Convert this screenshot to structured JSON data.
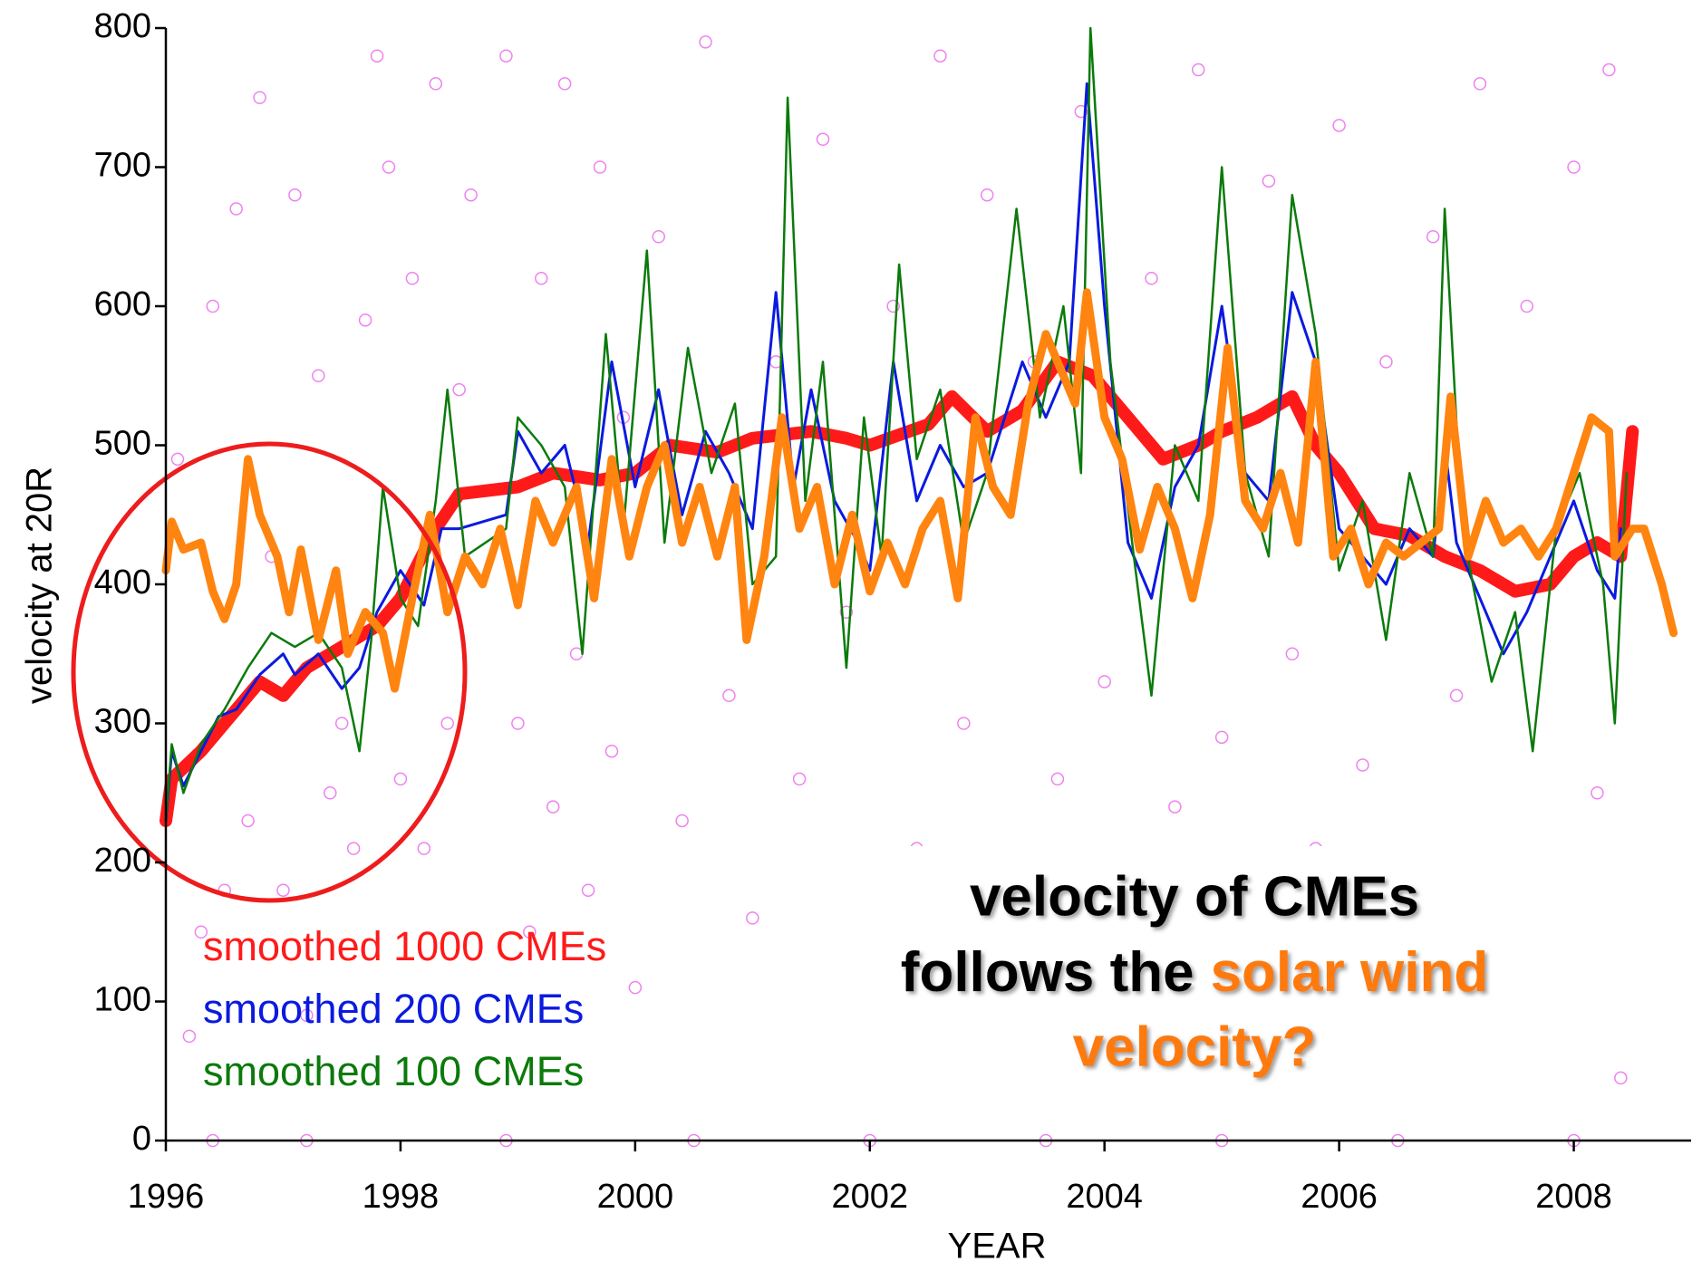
{
  "chart_data": {
    "type": "line",
    "xlabel": "YEAR",
    "ylabel": "velocity at 20R",
    "xlim": [
      1996,
      2009
    ],
    "ylim": [
      0,
      800
    ],
    "xticks": [
      1996,
      1998,
      2000,
      2002,
      2004,
      2006,
      2008
    ],
    "yticks": [
      0,
      100,
      200,
      300,
      400,
      500,
      600,
      700,
      800
    ],
    "annotation": {
      "line1": "velocity of CMEs",
      "line2a": "follows the",
      "line2b": "solar wind",
      "line3": "velocity?",
      "color": "#ff7a10"
    },
    "series": [
      {
        "type": "scatter",
        "color": "#ee82ee",
        "x": [
          1996.1,
          1996.2,
          1996.3,
          1996.4,
          1996.5,
          1996.6,
          1996.7,
          1996.8,
          1996.9,
          1997.0,
          1997.1,
          1997.2,
          1997.3,
          1997.4,
          1997.5,
          1997.6,
          1997.7,
          1997.8,
          1997.9,
          1998.0,
          1998.1,
          1998.2,
          1998.3,
          1998.4,
          1998.5,
          1998.6,
          1998.9,
          1999.0,
          1999.1,
          1999.2,
          1999.3,
          1999.4,
          1999.5,
          1999.6,
          1999.7,
          1999.8,
          1999.9,
          2000.0,
          2000.2,
          2000.4,
          2000.6,
          2000.8,
          2001.0,
          2001.2,
          2001.4,
          2001.6,
          2001.8,
          2002.0,
          2002.2,
          2002.4,
          2002.6,
          2002.8,
          2003.0,
          2003.2,
          2003.4,
          2003.6,
          2003.8,
          2004.0,
          2004.2,
          2004.4,
          2004.6,
          2004.8,
          2005.0,
          2005.2,
          2005.4,
          2005.6,
          2005.8,
          2006.0,
          2006.2,
          2006.4,
          2006.6,
          2006.8,
          2007.0,
          2007.2,
          2007.4,
          2007.6,
          2007.8,
          2008.0,
          2008.2,
          2008.4,
          2008.3,
          1996.4,
          1997.2,
          1998.9,
          2000.5,
          2002.0,
          2003.5,
          2005.0,
          2006.5,
          2008.0
        ],
        "values": [
          490,
          75,
          150,
          600,
          180,
          670,
          230,
          750,
          420,
          180,
          680,
          90,
          550,
          250,
          300,
          210,
          590,
          780,
          700,
          260,
          620,
          210,
          760,
          300,
          540,
          680,
          780,
          300,
          150,
          620,
          240,
          760,
          350,
          180,
          700,
          280,
          520,
          110,
          650,
          230,
          790,
          320,
          160,
          560,
          260,
          720,
          380,
          130,
          600,
          210,
          780,
          300,
          680,
          170,
          560,
          260,
          740,
          330,
          60,
          620,
          240,
          770,
          290,
          150,
          690,
          350,
          210,
          730,
          270,
          560,
          120,
          650,
          320,
          760,
          200,
          600,
          90,
          700,
          250,
          45,
          770,
          0,
          0,
          0,
          0,
          0,
          0,
          0,
          0,
          0
        ]
      },
      {
        "name": "smoothed 1000 CMEs",
        "color": "#ff1a1a",
        "x": [
          1996.0,
          1996.05,
          1996.3,
          1996.5,
          1996.8,
          1997.0,
          1997.2,
          1997.5,
          1997.8,
          1998.0,
          1998.3,
          1998.5,
          1999.0,
          1999.3,
          1999.7,
          2000.0,
          2000.3,
          2000.7,
          2001.0,
          2001.5,
          2001.8,
          2002.0,
          2002.5,
          2002.7,
          2003.0,
          2003.3,
          2003.6,
          2003.9,
          2004.2,
          2004.5,
          2004.8,
          2005.0,
          2005.3,
          2005.6,
          2005.8,
          2006.0,
          2006.3,
          2006.6,
          2006.9,
          2007.2,
          2007.5,
          2007.8,
          2008.0,
          2008.2,
          2008.4,
          2008.5
        ],
        "values": [
          230,
          260,
          280,
          300,
          330,
          320,
          340,
          355,
          370,
          390,
          440,
          465,
          470,
          480,
          475,
          480,
          500,
          495,
          505,
          510,
          505,
          500,
          515,
          535,
          510,
          525,
          560,
          550,
          520,
          490,
          500,
          510,
          520,
          535,
          500,
          480,
          440,
          435,
          420,
          410,
          395,
          400,
          420,
          430,
          420,
          510
        ]
      },
      {
        "name": "smoothed 200 CMEs",
        "color": "#0a1adf",
        "x": [
          1996.0,
          1996.05,
          1996.15,
          1996.3,
          1996.45,
          1996.6,
          1996.8,
          1997.0,
          1997.1,
          1997.3,
          1997.5,
          1997.65,
          1997.8,
          1998.0,
          1998.2,
          1998.35,
          1998.5,
          1998.9,
          1999.0,
          1999.2,
          1999.4,
          1999.6,
          1999.8,
          2000.0,
          2000.2,
          2000.4,
          2000.6,
          2000.8,
          2001.0,
          2001.2,
          2001.35,
          2001.5,
          2001.7,
          2001.9,
          2002.0,
          2002.2,
          2002.4,
          2002.6,
          2002.8,
          2003.0,
          2003.3,
          2003.5,
          2003.7,
          2003.85,
          2004.0,
          2004.2,
          2004.4,
          2004.6,
          2004.8,
          2005.0,
          2005.2,
          2005.4,
          2005.6,
          2005.8,
          2006.0,
          2006.2,
          2006.4,
          2006.6,
          2006.8,
          2006.9,
          2007.0,
          2007.2,
          2007.4,
          2007.6,
          2007.8,
          2008.0,
          2008.2,
          2008.35,
          2008.4
        ],
        "values": [
          230,
          280,
          255,
          280,
          305,
          310,
          335,
          350,
          335,
          350,
          325,
          340,
          380,
          410,
          385,
          440,
          440,
          450,
          510,
          480,
          500,
          430,
          560,
          470,
          540,
          450,
          510,
          480,
          440,
          610,
          470,
          540,
          460,
          430,
          410,
          560,
          460,
          500,
          470,
          480,
          560,
          520,
          560,
          760,
          600,
          430,
          390,
          470,
          500,
          600,
          480,
          460,
          610,
          560,
          440,
          420,
          400,
          440,
          420,
          500,
          430,
          390,
          350,
          380,
          420,
          460,
          410,
          390,
          440
        ]
      },
      {
        "name": "smoothed 100 CMEs",
        "color": "#0b7a0b",
        "x": [
          1996.0,
          1996.05,
          1996.15,
          1996.3,
          1996.5,
          1996.7,
          1996.9,
          1997.1,
          1997.3,
          1997.5,
          1997.65,
          1997.75,
          1997.85,
          1998.0,
          1998.15,
          1998.3,
          1998.4,
          1998.55,
          1998.9,
          1999.0,
          1999.2,
          1999.4,
          1999.55,
          1999.75,
          1999.9,
          2000.1,
          2000.25,
          2000.45,
          2000.65,
          2000.85,
          2001.0,
          2001.2,
          2001.3,
          2001.45,
          2001.6,
          2001.8,
          2001.95,
          2002.1,
          2002.25,
          2002.4,
          2002.6,
          2002.8,
          2003.0,
          2003.25,
          2003.45,
          2003.65,
          2003.8,
          2003.88,
          2004.05,
          2004.25,
          2004.4,
          2004.6,
          2004.8,
          2005.0,
          2005.2,
          2005.4,
          2005.6,
          2005.8,
          2006.0,
          2006.2,
          2006.4,
          2006.6,
          2006.8,
          2006.9,
          2007.05,
          2007.3,
          2007.5,
          2007.65,
          2007.85,
          2008.05,
          2008.25,
          2008.35,
          2008.45
        ],
        "values": [
          230,
          285,
          250,
          285,
          310,
          340,
          365,
          355,
          365,
          340,
          280,
          360,
          470,
          390,
          370,
          460,
          540,
          420,
          440,
          520,
          500,
          470,
          350,
          580,
          440,
          640,
          430,
          570,
          480,
          530,
          400,
          420,
          750,
          460,
          560,
          340,
          520,
          420,
          630,
          490,
          540,
          430,
          480,
          670,
          520,
          600,
          480,
          800,
          560,
          420,
          320,
          500,
          460,
          700,
          480,
          420,
          680,
          580,
          410,
          460,
          360,
          480,
          420,
          670,
          440,
          330,
          380,
          280,
          440,
          480,
          400,
          300,
          480
        ]
      },
      {
        "color": "#ff8410",
        "x": [
          1996.0,
          1996.05,
          1996.15,
          1996.3,
          1996.4,
          1996.5,
          1996.6,
          1996.7,
          1996.8,
          1996.95,
          1997.05,
          1997.15,
          1997.3,
          1997.45,
          1997.55,
          1997.7,
          1997.85,
          1997.95,
          1998.1,
          1998.25,
          1998.4,
          1998.55,
          1998.7,
          1998.85,
          1999.0,
          1999.15,
          1999.3,
          1999.5,
          1999.65,
          1999.8,
          1999.95,
          2000.1,
          2000.25,
          2000.4,
          2000.55,
          2000.7,
          2000.85,
          2000.95,
          2001.1,
          2001.25,
          2001.4,
          2001.55,
          2001.7,
          2001.85,
          2002.0,
          2002.15,
          2002.3,
          2002.45,
          2002.6,
          2002.75,
          2002.9,
          2003.05,
          2003.2,
          2003.35,
          2003.5,
          2003.65,
          2003.75,
          2003.85,
          2004.0,
          2004.15,
          2004.3,
          2004.45,
          2004.6,
          2004.75,
          2004.9,
          2005.05,
          2005.2,
          2005.35,
          2005.5,
          2005.65,
          2005.8,
          2005.95,
          2006.1,
          2006.25,
          2006.4,
          2006.55,
          2006.7,
          2006.85,
          2006.95,
          2007.1,
          2007.25,
          2007.4,
          2007.55,
          2007.7,
          2007.85,
          2008.0,
          2008.15,
          2008.3,
          2008.35,
          2008.5,
          2008.6,
          2008.75,
          2008.85
        ],
        "values": [
          410,
          445,
          425,
          430,
          395,
          375,
          400,
          490,
          450,
          420,
          380,
          425,
          360,
          410,
          350,
          380,
          365,
          325,
          390,
          450,
          380,
          420,
          400,
          440,
          385,
          460,
          430,
          470,
          390,
          490,
          420,
          470,
          500,
          430,
          470,
          420,
          470,
          360,
          420,
          520,
          440,
          470,
          400,
          450,
          395,
          430,
          400,
          440,
          460,
          390,
          520,
          470,
          450,
          530,
          580,
          550,
          530,
          610,
          520,
          490,
          425,
          470,
          440,
          390,
          450,
          570,
          460,
          440,
          480,
          430,
          560,
          420,
          440,
          400,
          430,
          420,
          430,
          440,
          535,
          420,
          460,
          430,
          440,
          420,
          440,
          480,
          520,
          510,
          420,
          440,
          440,
          400,
          365
        ]
      }
    ]
  }
}
